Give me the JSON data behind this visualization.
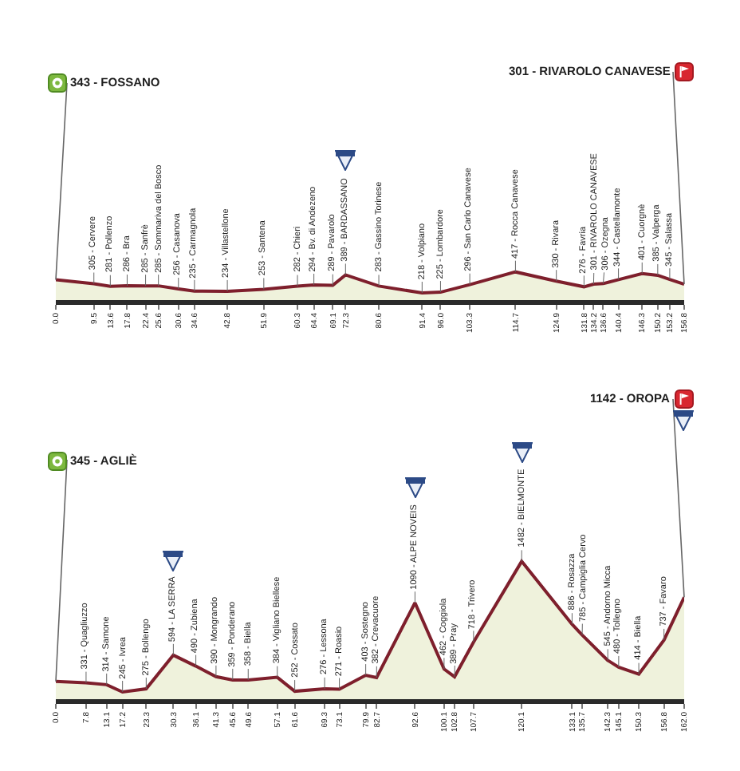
{
  "chart_data": [
    {
      "type": "area",
      "x": [
        0,
        9.5,
        13.6,
        17.8,
        22.4,
        25.6,
        30.6,
        34.6,
        42.8,
        51.9,
        60.3,
        64.4,
        69.1,
        72.3,
        80.6,
        91.4,
        96,
        103.3,
        114.7,
        124.9,
        131.8,
        134.2,
        136.6,
        140.4,
        146.3,
        150.2,
        153.2,
        156.8
      ],
      "values": [
        343,
        305,
        281,
        286,
        285,
        285,
        256,
        235,
        234,
        253,
        282,
        294,
        289,
        389,
        283,
        218,
        225,
        296,
        417,
        330,
        276,
        301,
        306,
        344,
        401,
        385,
        345,
        301
      ],
      "value_labels": [
        "343 - FOSSANO",
        "305 - Cervere",
        "281 - Pollenzo",
        "286 - Bra",
        "285 - Sanfrè",
        "285 - Sommariva del Bosco",
        "256 - Casanova",
        "235 - Carmagnola",
        "234 - Villastellone",
        "253 - Santena",
        "282 - Chieri",
        "294 - Bv. di Andezeno",
        "289 - Pavarolo",
        "389 - BARDASSANO",
        "283 - Gassino Torinese",
        "218 - Volpiano",
        "225 - Lombardore",
        "296 - San Carlo Canavese",
        "417 - Rocca Canavese",
        "330 - Rivara",
        "276 - Favria",
        "301 - RIVAROLO CANAVESE",
        "306 - Ozegna",
        "344 - Castellamonte",
        "401 - Cuorgnè",
        "385 - Valperga",
        "345 - Salassa",
        "301 - RIVAROLO CANAVESE"
      ],
      "color": "#7e1f2c",
      "xlim": [
        0,
        156.8
      ],
      "xticks": [
        {
          "value": 0,
          "label": "0.0"
        },
        9.5,
        13.6,
        17.8,
        22.4,
        25.6,
        30.6,
        34.6,
        42.8,
        51.9,
        60.3,
        64.4,
        69.1,
        72.3,
        80.6,
        91.4,
        {
          "value": 96,
          "label": "96.0"
        },
        103.3,
        114.7,
        124.9,
        131.8,
        134.2,
        136.6,
        140.4,
        146.3,
        150.2,
        153.2,
        156.8
      ],
      "tick_labels": "x"
    },
    {
      "type": "area",
      "x": [
        0,
        7.8,
        13.1,
        17.2,
        23.3,
        30.3,
        36.1,
        41.3,
        45.6,
        49.6,
        57.1,
        61.6,
        69.3,
        73.1,
        79.9,
        82.7,
        92.6,
        100.1,
        102.8,
        107.7,
        120.1,
        133.1,
        135.7,
        142.3,
        145.1,
        150.3,
        156.8,
        162
      ],
      "values": [
        345,
        331,
        314,
        245,
        275,
        594,
        490,
        390,
        359,
        358,
        384,
        252,
        276,
        271,
        403,
        382,
        1090,
        462,
        389,
        718,
        1482,
        886,
        785,
        545,
        480,
        414,
        737,
        1142
      ],
      "value_labels": [
        "345 - AGLIÈ",
        "331 - Quagliuzzo",
        "314 - Samone",
        "245 - Ivrea",
        "275 - Bollengo",
        "594 - LA SERRA",
        "490 - Zubiena",
        "390 - Mongrando",
        "359 - Ponderano",
        "358 - Biella",
        "384 - Vigliano Biellese",
        "252 - Cossato",
        "276 - Lessona",
        "271 - Roasio",
        "403 - Sostegno",
        "382 - Crevacuore",
        "1090 - ALPE NOVEIS",
        "462 - Coggiola",
        "389 - Pray",
        "718 - Trivero",
        "1482 - BIELMONTE",
        "886 - Rosazza",
        "785 - Campiglia Cervo",
        "545 - Andorno Micca",
        "480 - Tollegno",
        "414 - Biella",
        "737 - Favaro",
        "1142 - OROPA"
      ],
      "color": "#7e1f2c",
      "xlim": [
        0,
        162
      ],
      "xticks": [
        {
          "value": 0,
          "label": "0.0"
        },
        7.8,
        13.1,
        17.2,
        23.3,
        30.3,
        36.1,
        41.3,
        45.6,
        49.6,
        57.1,
        61.6,
        69.3,
        73.1,
        79.9,
        82.7,
        92.6,
        100.1,
        102.8,
        107.7,
        120.1,
        133.1,
        135.7,
        142.3,
        145.1,
        150.3,
        156.8,
        {
          "value": 162,
          "label": "162.0"
        }
      ],
      "tick_labels": "x"
    }
  ]
}
